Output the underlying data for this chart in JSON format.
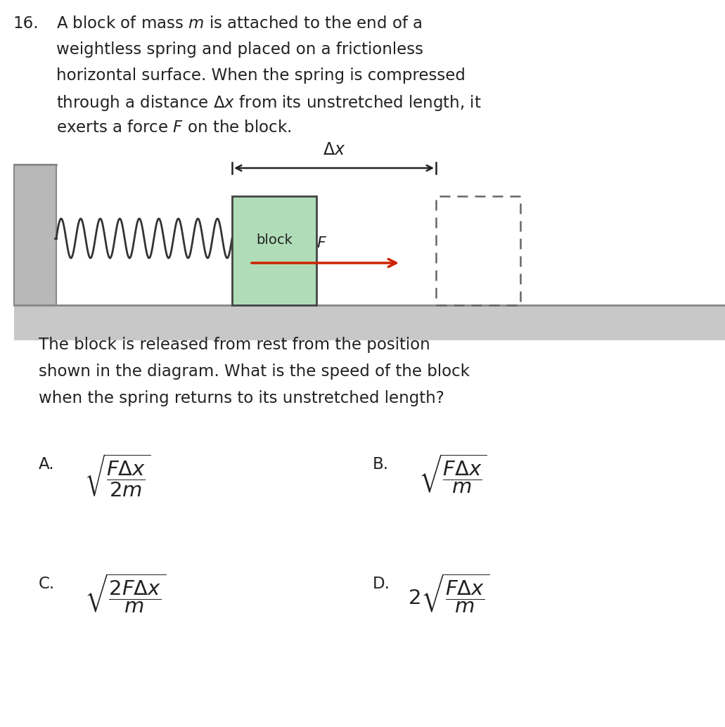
{
  "bg_color": "#ffffff",
  "text_color": "#222222",
  "wall_color": "#b8b8b8",
  "surface_color": "#c8c8c8",
  "block_fill": "#b0ddb8",
  "block_stroke": "#444444",
  "spring_color": "#333333",
  "arrow_color": "#cc2200",
  "dashed_color": "#666666",
  "floor_line_color": "#888888",
  "question_number": "16.",
  "q_lines": [
    "A block of mass $m$ is attached to the end of a",
    "weightless spring and placed on a frictionless",
    "horizontal surface. When the spring is compressed",
    "through a distance $\\Delta x$ from its unstretched length, it",
    "exerts a force $F$ on the block."
  ],
  "fup_lines": [
    "The block is released from rest from the position",
    "shown in the diagram. What is the speed of the block",
    "when the spring returns to its unstretched length?"
  ],
  "ans_A": "$\\sqrt{\\dfrac{F\\Delta x}{2m}}$",
  "ans_B": "$\\sqrt{\\dfrac{F\\Delta x}{m}}$",
  "ans_C": "$\\sqrt{\\dfrac{2F\\Delta x}{m}}$",
  "ans_D": "$2\\sqrt{\\dfrac{F\\Delta x}{m}}$"
}
